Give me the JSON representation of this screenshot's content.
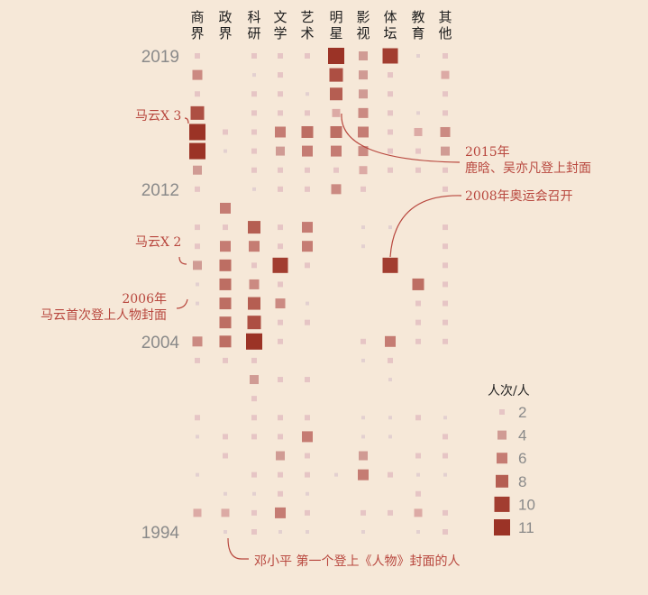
{
  "chart_data": {
    "type": "heatmap",
    "categories": [
      "商界",
      "政界",
      "科研",
      "文学",
      "艺术",
      "明星",
      "影视",
      "体坛",
      "教育",
      "其他"
    ],
    "category_labels": [
      [
        "商",
        "界"
      ],
      [
        "政",
        "界"
      ],
      [
        "科",
        "研"
      ],
      [
        "文",
        "学"
      ],
      [
        "艺",
        "术"
      ],
      [
        "明",
        "星"
      ],
      [
        "影",
        "视"
      ],
      [
        "体",
        "坛"
      ],
      [
        "教",
        "育"
      ],
      [
        "其他"
      ]
    ],
    "years": [
      2019,
      2018,
      2017,
      2016,
      2015,
      2014,
      2013,
      2012,
      2011,
      2010,
      2009,
      2008,
      2007,
      2006,
      2005,
      2004,
      2003,
      2002,
      2001,
      2000,
      1999,
      1998,
      1997,
      1996,
      1995,
      1994
    ],
    "year_tick_labels": [
      "2019",
      "2012",
      "2004",
      "1994"
    ],
    "year_ticks": [
      2019,
      2012,
      2004,
      1994
    ],
    "values": [
      [
        2,
        0,
        2,
        2,
        2,
        11,
        4,
        10,
        1,
        2
      ],
      [
        5,
        0,
        1,
        2,
        0,
        9,
        4,
        2,
        0,
        3
      ],
      [
        2,
        0,
        2,
        2,
        1,
        8,
        4,
        2,
        0,
        2
      ],
      [
        9,
        0,
        2,
        2,
        2,
        3,
        5,
        2,
        1,
        2
      ],
      [
        11,
        2,
        2,
        6,
        7,
        7,
        6,
        2,
        3,
        5
      ],
      [
        11,
        1,
        2,
        4,
        6,
        6,
        5,
        2,
        2,
        4
      ],
      [
        4,
        0,
        2,
        2,
        2,
        2,
        3,
        2,
        2,
        2
      ],
      [
        2,
        0,
        1,
        2,
        2,
        5,
        2,
        0,
        0,
        2
      ],
      [
        0,
        6,
        0,
        0,
        0,
        0,
        0,
        0,
        0,
        0
      ],
      [
        2,
        2,
        8,
        2,
        6,
        0,
        1,
        1,
        0,
        2
      ],
      [
        2,
        6,
        6,
        2,
        6,
        0,
        1,
        0,
        0,
        2
      ],
      [
        4,
        7,
        2,
        10,
        2,
        0,
        0,
        10,
        0,
        2
      ],
      [
        1,
        7,
        5,
        2,
        0,
        0,
        0,
        0,
        7,
        2
      ],
      [
        1,
        7,
        8,
        5,
        1,
        0,
        0,
        0,
        2,
        2
      ],
      [
        0,
        7,
        9,
        2,
        2,
        0,
        0,
        0,
        2,
        2
      ],
      [
        5,
        7,
        11,
        2,
        0,
        0,
        2,
        6,
        2,
        2
      ],
      [
        2,
        2,
        2,
        0,
        0,
        0,
        1,
        2,
        0,
        0
      ],
      [
        0,
        0,
        4,
        2,
        2,
        0,
        0,
        1,
        0,
        0
      ],
      [
        0,
        0,
        2,
        0,
        0,
        0,
        0,
        0,
        0,
        0
      ],
      [
        2,
        0,
        2,
        2,
        2,
        0,
        1,
        1,
        2,
        1
      ],
      [
        1,
        2,
        2,
        2,
        6,
        0,
        1,
        1,
        0,
        2
      ],
      [
        0,
        2,
        0,
        4,
        2,
        0,
        4,
        0,
        2,
        2
      ],
      [
        1,
        0,
        2,
        2,
        2,
        1,
        6,
        2,
        1,
        1
      ],
      [
        0,
        1,
        1,
        2,
        1,
        0,
        0,
        0,
        2,
        0
      ],
      [
        3,
        3,
        2,
        6,
        2,
        0,
        2,
        2,
        3,
        2
      ],
      [
        0,
        1,
        2,
        1,
        1,
        0,
        1,
        0,
        1,
        2
      ]
    ],
    "legend": {
      "title": "人次/人",
      "levels": [
        2,
        4,
        6,
        8,
        10,
        11
      ]
    },
    "annotations": [
      {
        "text": "马云X 3"
      },
      {
        "text": "马云X 2"
      },
      {
        "lines": [
          "2006年",
          "马云首次登上人物封面"
        ]
      },
      {
        "lines": [
          "2015年",
          "鹿晗、吴亦凡登上封面"
        ]
      },
      {
        "text": "2008年奥运会召开"
      },
      {
        "text": "邓小平 第一个登上《人物》封面的人"
      }
    ]
  }
}
